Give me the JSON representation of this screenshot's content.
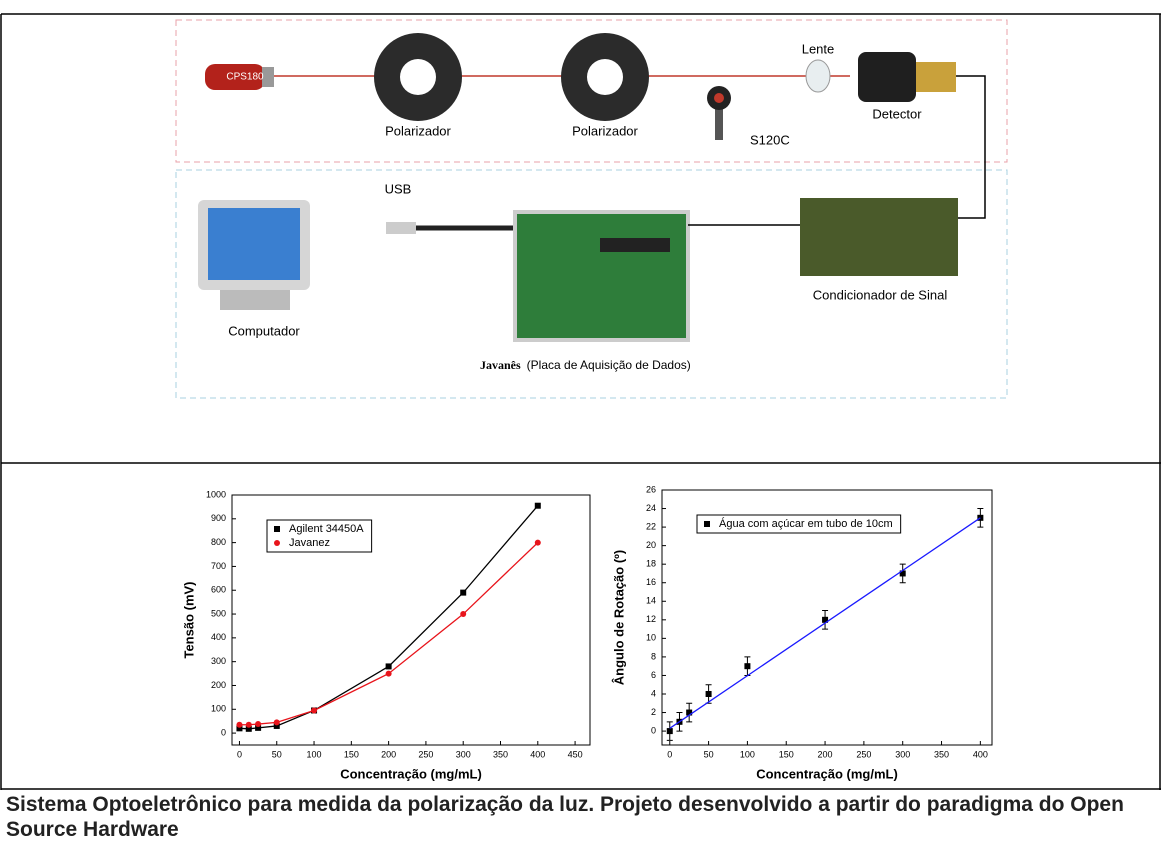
{
  "diagram": {
    "labels": {
      "laser": "CPS180",
      "polarizer1": "Polarizador",
      "polarizer2": "Polarizador",
      "filter": "S120C",
      "lens": "Lente",
      "detector": "Detector",
      "usb": "USB",
      "computer": "Computador",
      "board_name": "Javanês",
      "board_desc": "(Placa de Aquisição de Dados)",
      "conditioner": "Condicionador de Sinal"
    }
  },
  "chart_data": [
    {
      "type": "scatter",
      "xlabel": "Concentração (mg/mL)",
      "ylabel": "Tensão (mV)",
      "xlim": [
        -10,
        470
      ],
      "xticks": [
        0,
        50,
        100,
        150,
        200,
        250,
        300,
        350,
        400,
        450
      ],
      "ylim": [
        -50,
        1000
      ],
      "yticks": [
        0,
        100,
        200,
        300,
        400,
        500,
        600,
        700,
        800,
        900,
        1000
      ],
      "legend": "upper left",
      "series": [
        {
          "name": "Agilent 34450A",
          "color": "#000000",
          "marker": "square",
          "line": true,
          "x": [
            0,
            12.5,
            25,
            50,
            100,
            200,
            300,
            400
          ],
          "values": [
            20,
            18,
            22,
            30,
            95,
            280,
            590,
            955
          ]
        },
        {
          "name": "Javanez",
          "color": "#e8141b",
          "marker": "circle",
          "line": true,
          "x": [
            0,
            12.5,
            25,
            50,
            100,
            200,
            300,
            400
          ],
          "values": [
            35,
            35,
            38,
            45,
            95,
            250,
            500,
            800
          ]
        }
      ]
    },
    {
      "type": "scatter",
      "xlabel": "Concentração (mg/mL)",
      "ylabel": "Ângulo de Rotação (º)",
      "xlim": [
        -10,
        415
      ],
      "xticks": [
        0,
        50,
        100,
        150,
        200,
        250,
        300,
        350,
        400
      ],
      "ylim": [
        -1.5,
        26
      ],
      "yticks": [
        0,
        2,
        4,
        6,
        8,
        10,
        12,
        14,
        16,
        18,
        20,
        22,
        24,
        26
      ],
      "legend": "upper left",
      "series": [
        {
          "name": "Água com açúcar em tubo de 10cm",
          "color": "#000000",
          "marker": "square",
          "line": false,
          "x": [
            0,
            12.5,
            25,
            50,
            100,
            200,
            300,
            400
          ],
          "values": [
            0,
            1,
            2,
            4,
            7,
            12,
            17,
            23
          ],
          "errors": [
            1,
            1,
            1,
            1,
            1,
            1,
            1,
            1
          ]
        },
        {
          "color": "#1a1aff",
          "line": true,
          "x": [
            0,
            400
          ],
          "values": [
            0.3,
            23
          ]
        }
      ]
    }
  ],
  "caption": "Sistema Optoeletrônico para medida da polarização da luz. Projeto desenvolvido a partir do paradigma do Open Source Hardware"
}
